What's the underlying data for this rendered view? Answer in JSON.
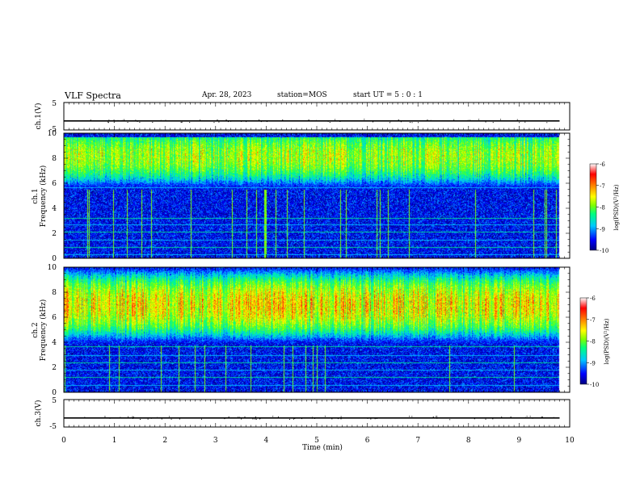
{
  "header": {
    "title": "VLF Spectra",
    "date": "Apr. 28, 2023",
    "station": "station=MOS",
    "start": "start UT =  5 : 0 : 1"
  },
  "colors": {
    "colormap": [
      "#000080",
      "#0000ff",
      "#00c8ff",
      "#00ff80",
      "#80ff00",
      "#ffff00",
      "#ff8000",
      "#ff0000",
      "#ffffff"
    ]
  },
  "chart_data": [
    {
      "type": "line",
      "name": "ch1-waveform",
      "ylabel": "ch.1(V)",
      "ylim": [
        -5,
        5
      ],
      "yticks": [
        "5",
        "-5"
      ],
      "x": [
        0,
        1,
        2,
        3,
        4,
        5,
        6,
        7,
        8,
        9,
        9.8
      ],
      "y": [
        -1.7,
        -1.7,
        -1.7,
        -1.7,
        -1.7,
        -1.7,
        -1.7,
        -1.7,
        -1.7,
        -1.7,
        -1.7
      ]
    },
    {
      "type": "heatmap",
      "name": "ch1-spectrogram",
      "ylabel_line1": "ch.1",
      "ylabel_line2": "Frequency (kHz)",
      "ylim": [
        0,
        10
      ],
      "yticks": [
        "0",
        "2",
        "4",
        "6",
        "8",
        "10"
      ],
      "xlim": [
        0,
        10
      ],
      "data_end_min": 9.8,
      "colorbar": {
        "label": "log(PSD)(V²/Hz)",
        "range": [
          -10,
          -6
        ],
        "ticks": [
          "-6",
          "-7",
          "-8",
          "-9",
          "-10"
        ]
      },
      "band_kHz": [
        5.5,
        9.7
      ],
      "peak_kHz": 8.2,
      "peak_log_psd": -7.3,
      "background_log_psd": -10,
      "horizontal_lines_kHz": [
        0.3,
        0.9,
        1.5,
        2.1,
        2.7,
        3.2,
        5.7
      ]
    },
    {
      "type": "heatmap",
      "name": "ch2-spectrogram",
      "ylabel_line1": "ch.2",
      "ylabel_line2": "Frequency (kHz)",
      "ylim": [
        0,
        10
      ],
      "yticks": [
        "0",
        "2",
        "4",
        "6",
        "8",
        "10"
      ],
      "xlim": [
        0,
        10
      ],
      "data_end_min": 9.8,
      "colorbar": {
        "label": "log(PSD)(V²/Hz)",
        "range": [
          -10,
          -6
        ],
        "ticks": [
          "-6",
          "-7",
          "-8",
          "-9",
          "-10"
        ]
      },
      "band_kHz": [
        3.8,
        10
      ],
      "peak_kHz": 7.0,
      "peak_log_psd": -6.8,
      "background_log_psd": -10,
      "horizontal_lines_kHz": [
        0.6,
        1.2,
        1.8,
        2.4,
        3.0,
        3.7
      ]
    },
    {
      "type": "line",
      "name": "ch3-waveform",
      "ylabel": "ch.3(V)",
      "ylim": [
        -5,
        5
      ],
      "yticks": [
        "5",
        "-5"
      ],
      "xlabel": "Time (min)",
      "xticks": [
        "0",
        "1",
        "2",
        "3",
        "4",
        "5",
        "6",
        "7",
        "8",
        "9",
        "10"
      ],
      "x": [
        0,
        1,
        2,
        3,
        4,
        5,
        6,
        7,
        8,
        9,
        9.8
      ],
      "y": [
        -1.7,
        -1.7,
        -1.7,
        -1.7,
        -1.7,
        -1.7,
        -1.7,
        -1.7,
        -1.7,
        -1.7,
        -1.7
      ]
    }
  ]
}
